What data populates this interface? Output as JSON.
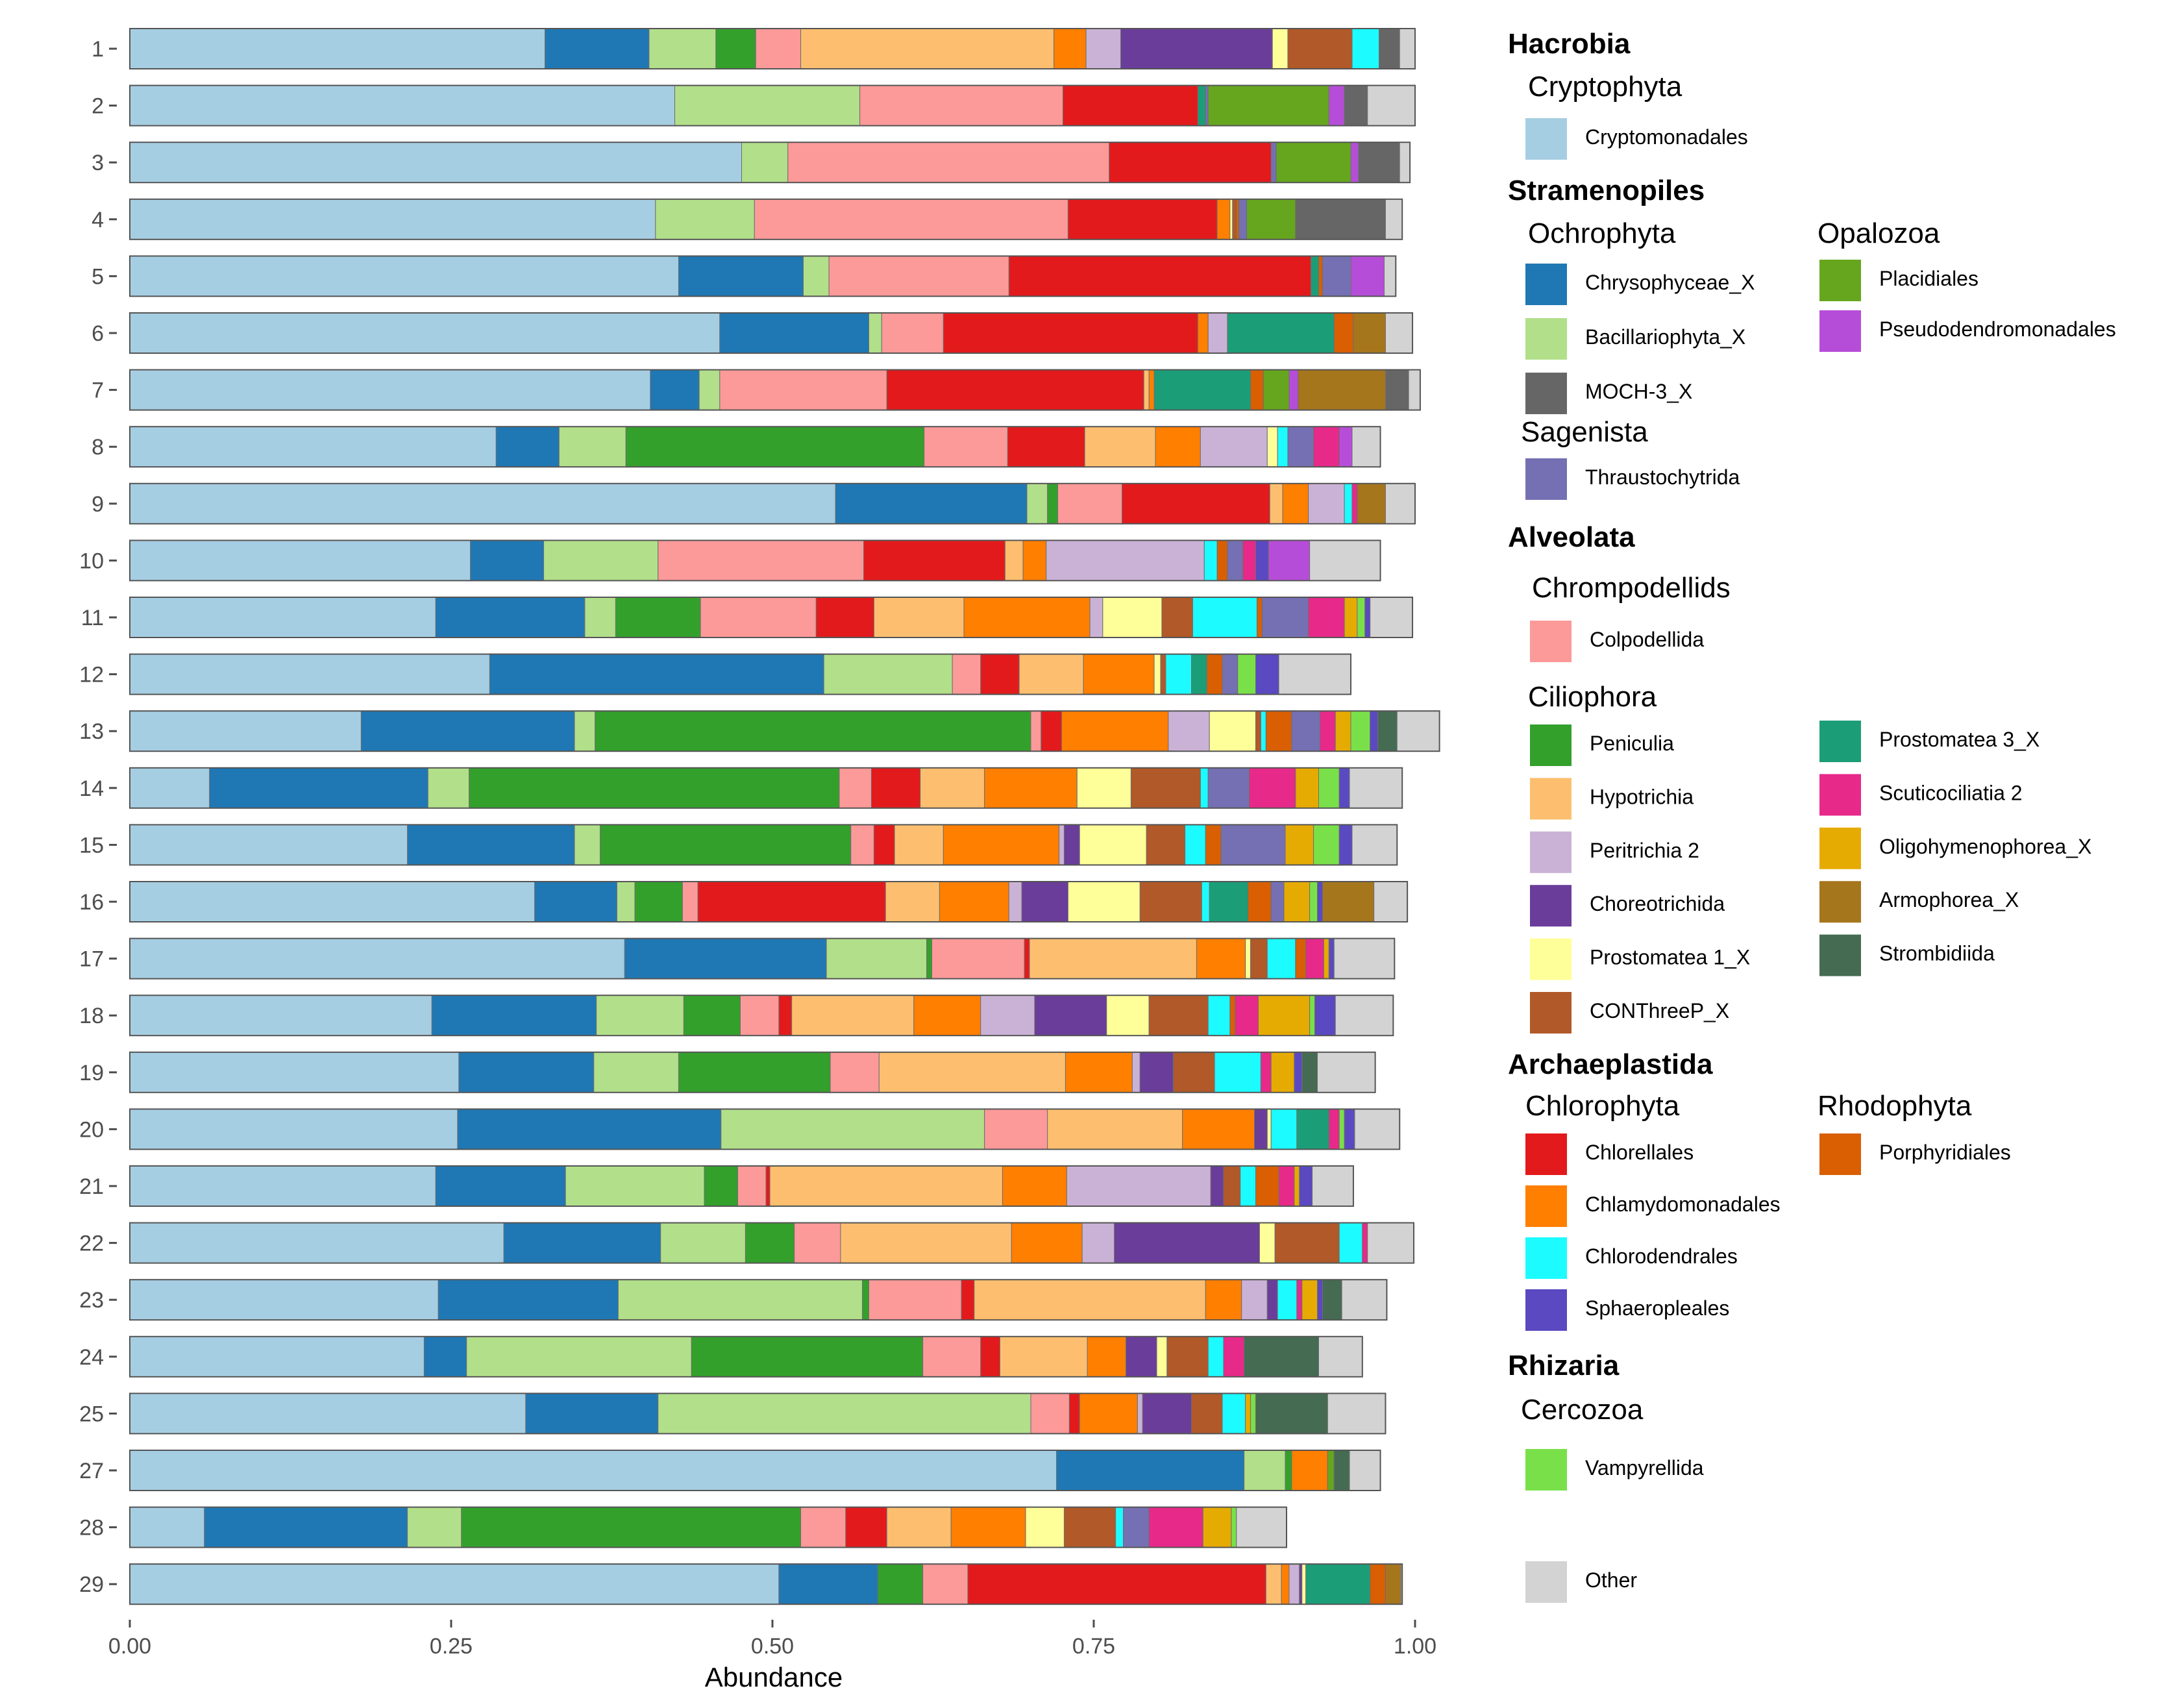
{
  "chart_data": {
    "type": "bar",
    "orientation": "horizontal",
    "stacked": true,
    "xlabel": "Abundance",
    "ylabel": "",
    "xlim": [
      0,
      1
    ],
    "xticks": [
      "0.00",
      "0.25",
      "0.50",
      "0.75",
      "1.00"
    ],
    "categories": [
      "1",
      "2",
      "3",
      "4",
      "5",
      "6",
      "7",
      "8",
      "9",
      "10",
      "11",
      "12",
      "13",
      "14",
      "15",
      "16",
      "17",
      "18",
      "19",
      "20",
      "21",
      "22",
      "23",
      "24",
      "25",
      "27",
      "28",
      "29"
    ],
    "series": [
      {
        "name": "Cryptomonadales",
        "color": "#a6cee3",
        "values": [
          0.323,
          0.424,
          0.476,
          0.409,
          0.427,
          0.459,
          0.405,
          0.285,
          0.549,
          0.265,
          0.238,
          0.28,
          0.18,
          0.062,
          0.216,
          0.315,
          0.385,
          0.235,
          0.256,
          0.255,
          0.238,
          0.291,
          0.24,
          0.229,
          0.308,
          0.721,
          0.058,
          0.505
        ]
      },
      {
        "name": "Chrysophyceae_X",
        "color": "#1f78b4",
        "values": [
          0.081,
          0,
          0,
          0,
          0.097,
          0.116,
          0.038,
          0.049,
          0.149,
          0.057,
          0.116,
          0.26,
          0.166,
          0.17,
          0.13,
          0.064,
          0.157,
          0.128,
          0.105,
          0.205,
          0.101,
          0.122,
          0.14,
          0.033,
          0.103,
          0.146,
          0.158,
          0.077
        ]
      },
      {
        "name": "Bacillariophyta_X",
        "color": "#b2df8a",
        "values": [
          0.052,
          0.144,
          0.036,
          0.077,
          0.02,
          0.01,
          0.016,
          0.052,
          0.016,
          0.089,
          0.024,
          0.1,
          0.016,
          0.032,
          0.02,
          0.014,
          0.078,
          0.068,
          0.066,
          0.205,
          0.108,
          0.066,
          0.19,
          0.175,
          0.29,
          0.032,
          0.042,
          0
        ]
      },
      {
        "name": "Peniculia",
        "color": "#33a02c",
        "values": [
          0.031,
          0,
          0,
          0,
          0,
          0,
          0,
          0.232,
          0.008,
          0,
          0.066,
          0,
          0.339,
          0.288,
          0.195,
          0.037,
          0.004,
          0.044,
          0.118,
          0,
          0.026,
          0.038,
          0.005,
          0.18,
          0,
          0.005,
          0.264,
          0.035
        ]
      },
      {
        "name": "Colpodellida",
        "color": "#fb9a99",
        "values": [
          0.035,
          0.158,
          0.25,
          0.244,
          0.14,
          0.048,
          0.13,
          0.065,
          0.05,
          0.16,
          0.09,
          0.022,
          0.008,
          0.025,
          0.018,
          0.012,
          0.072,
          0.03,
          0.038,
          0.049,
          0.022,
          0.036,
          0.072,
          0.045,
          0.03,
          0,
          0.035,
          0.035
        ]
      },
      {
        "name": "Chlorellales",
        "color": "#e31a1c",
        "values": [
          0,
          0.105,
          0.126,
          0.116,
          0.235,
          0.198,
          0.2,
          0.06,
          0.115,
          0.11,
          0.045,
          0.03,
          0.016,
          0.038,
          0.016,
          0.146,
          0.004,
          0.01,
          0,
          0,
          0.003,
          0,
          0.01,
          0.015,
          0.008,
          0,
          0.032,
          0.232
        ]
      },
      {
        "name": "Hypotrichia",
        "color": "#fdbf6f",
        "values": [
          0.197,
          0,
          0,
          0,
          0,
          0,
          0.004,
          0.055,
          0.01,
          0.014,
          0.07,
          0.05,
          0,
          0.05,
          0.038,
          0.042,
          0.13,
          0.095,
          0.145,
          0.105,
          0.181,
          0.133,
          0.18,
          0.068,
          0,
          0,
          0.05,
          0.012
        ]
      },
      {
        "name": "Chlamydomonadales",
        "color": "#ff7f00",
        "values": [
          0.025,
          0,
          0,
          0.01,
          0,
          0.008,
          0.004,
          0.035,
          0.02,
          0.018,
          0.098,
          0.055,
          0.083,
          0.072,
          0.09,
          0.054,
          0.038,
          0.052,
          0.052,
          0.056,
          0.05,
          0.055,
          0.028,
          0.03,
          0.045,
          0.028,
          0.058,
          0.006
        ]
      },
      {
        "name": "Peritrichia 2",
        "color": "#cab2d6",
        "values": [
          0.027,
          0,
          0,
          0,
          0,
          0.015,
          0,
          0.052,
          0.028,
          0.123,
          0.01,
          0,
          0.032,
          0,
          0.004,
          0.01,
          0,
          0.042,
          0.006,
          0,
          0.112,
          0.025,
          0.02,
          0,
          0.004,
          0,
          0,
          0.008
        ]
      },
      {
        "name": "Choreotrichida",
        "color": "#6a3d9a",
        "values": [
          0.118,
          0,
          0,
          0,
          0,
          0,
          0,
          0,
          0,
          0,
          0,
          0,
          0,
          0,
          0.012,
          0.036,
          0,
          0.056,
          0.026,
          0.01,
          0.01,
          0.113,
          0.008,
          0.024,
          0.038,
          0,
          0,
          0.002
        ]
      },
      {
        "name": "Prostomatea 1_X",
        "color": "#ffff99",
        "values": [
          0.012,
          0,
          0,
          0.002,
          0,
          0,
          0,
          0.008,
          0,
          0,
          0.046,
          0.005,
          0.036,
          0.042,
          0.052,
          0.056,
          0.004,
          0.033,
          0,
          0.003,
          0,
          0.012,
          0,
          0.008,
          0,
          0,
          0.03,
          0.003
        ]
      },
      {
        "name": "CONThreeP_X",
        "color": "#b15928",
        "values": [
          0.05,
          0,
          0,
          0.003,
          0,
          0,
          0,
          0,
          0,
          0,
          0.024,
          0.004,
          0.004,
          0.054,
          0.03,
          0.048,
          0.013,
          0.046,
          0.032,
          0,
          0.013,
          0.05,
          0,
          0.032,
          0.024,
          0,
          0.04,
          0
        ]
      },
      {
        "name": "Chlorodendrales",
        "color": "#1cfbff",
        "values": [
          0.021,
          0,
          0,
          0,
          0,
          0,
          0,
          0.008,
          0.006,
          0.01,
          0.05,
          0.02,
          0.004,
          0.006,
          0.016,
          0.006,
          0.022,
          0.017,
          0.036,
          0.02,
          0.012,
          0.018,
          0.015,
          0.012,
          0.018,
          0,
          0.006,
          0
        ]
      },
      {
        "name": "Prostomatea  3_X",
        "color": "#1b9e77",
        "values": [
          0,
          0.006,
          0,
          0,
          0.006,
          0.083,
          0.075,
          0,
          0,
          0,
          0,
          0.012,
          0,
          0,
          0,
          0.03,
          0,
          0,
          0,
          0.025,
          0,
          0,
          0,
          0,
          0,
          0,
          0,
          0.05
        ]
      },
      {
        "name": "Porphyridiales",
        "color": "#d95f02",
        "values": [
          0,
          0,
          0,
          0.002,
          0.003,
          0.015,
          0.01,
          0,
          0,
          0.008,
          0.004,
          0.012,
          0.02,
          0,
          0.012,
          0.018,
          0.008,
          0.004,
          0,
          0,
          0.018,
          0,
          0,
          0,
          0,
          0,
          0,
          0.012
        ]
      },
      {
        "name": "Thraustochytrida",
        "color": "#7570b3",
        "values": [
          0,
          0.002,
          0.004,
          0.006,
          0.022,
          0,
          0,
          0.02,
          0,
          0.012,
          0.036,
          0.012,
          0.022,
          0.032,
          0.05,
          0.01,
          0,
          0,
          0,
          0,
          0,
          0,
          0,
          0,
          0,
          0,
          0.02,
          0
        ]
      },
      {
        "name": "Scuticociliatia 2",
        "color": "#e7298a",
        "values": [
          0,
          0,
          0,
          0,
          0,
          0,
          0,
          0.02,
          0.004,
          0.01,
          0.028,
          0,
          0.012,
          0.036,
          0,
          0,
          0.014,
          0.018,
          0.008,
          0.008,
          0.012,
          0.004,
          0.004,
          0.016,
          0,
          0,
          0.042,
          0
        ]
      },
      {
        "name": "Oligohymenophorea_X",
        "color": "#e6ab02",
        "values": [
          0,
          0,
          0,
          0,
          0,
          0,
          0,
          0,
          0,
          0,
          0.01,
          0,
          0.012,
          0.018,
          0.022,
          0.02,
          0.004,
          0.04,
          0.018,
          0,
          0.004,
          0,
          0.012,
          0,
          0.004,
          0,
          0.022,
          0
        ]
      },
      {
        "name": "Vampyrellida",
        "color": "#7ae04a",
        "values": [
          0,
          0,
          0,
          0,
          0,
          0,
          0,
          0,
          0,
          0,
          0.006,
          0.014,
          0.015,
          0.016,
          0.02,
          0.006,
          0,
          0.004,
          0,
          0.004,
          0,
          0,
          0,
          0,
          0.004,
          0,
          0.004,
          0
        ]
      },
      {
        "name": "Sphaeropleales",
        "color": "#5a49c0",
        "values": [
          0,
          0,
          0,
          0,
          0,
          0,
          0,
          0,
          0,
          0.01,
          0.004,
          0.018,
          0.006,
          0.008,
          0.01,
          0.004,
          0.004,
          0.016,
          0.006,
          0.008,
          0.01,
          0,
          0.004,
          0,
          0,
          0,
          0,
          0
        ]
      },
      {
        "name": "Placidiales",
        "color": "#66a61e",
        "values": [
          0,
          0.094,
          0.058,
          0.038,
          0,
          0,
          0.02,
          0,
          0,
          0,
          0,
          0,
          0,
          0,
          0,
          0,
          0,
          0,
          0,
          0,
          0,
          0,
          0,
          0,
          0,
          0.005,
          0,
          0
        ]
      },
      {
        "name": "Pseudodendromonadales",
        "color": "#b64dd8",
        "values": [
          0,
          0.012,
          0.006,
          0,
          0.026,
          0,
          0.007,
          0.01,
          0,
          0.032,
          0,
          0,
          0,
          0,
          0,
          0,
          0,
          0,
          0,
          0,
          0,
          0,
          0,
          0,
          0,
          0,
          0,
          0
        ]
      },
      {
        "name": "Armophorea_X",
        "color": "#a6761d",
        "values": [
          0,
          0,
          0,
          0,
          0,
          0.025,
          0.068,
          0,
          0.022,
          0,
          0,
          0,
          0,
          0,
          0,
          0.04,
          0,
          0,
          0,
          0,
          0,
          0,
          0,
          0,
          0,
          0,
          0,
          0.012
        ]
      },
      {
        "name": "Strombidiida",
        "color": "#456b52",
        "values": [
          0,
          0,
          0,
          0,
          0,
          0,
          0,
          0,
          0,
          0,
          0,
          0,
          0.015,
          0,
          0,
          0,
          0,
          0,
          0.012,
          0,
          0,
          0,
          0.015,
          0.058,
          0.056,
          0.012,
          0,
          0
        ]
      },
      {
        "name": "MOCH-3_X",
        "color": "#666666",
        "values": [
          0.016,
          0.018,
          0.032,
          0.07,
          0,
          0,
          0.018,
          0,
          0,
          0,
          0,
          0,
          0,
          0,
          0,
          0,
          0,
          0,
          0,
          0,
          0,
          0,
          0,
          0,
          0,
          0,
          0,
          0
        ]
      },
      {
        "name": "Other",
        "color": "#d3d3d3",
        "values": [
          0.012,
          0.037,
          0.008,
          0.013,
          0.009,
          0.021,
          0.009,
          0.022,
          0.023,
          0.055,
          0.033,
          0.056,
          0.033,
          0.041,
          0.035,
          0.026,
          0.047,
          0.045,
          0.045,
          0.035,
          0.032,
          0.036,
          0.035,
          0.034,
          0.045,
          0.024,
          0.039,
          0.001
        ]
      }
    ],
    "legend": {
      "placement": "right",
      "groups": [
        {
          "title": "Hacrobia",
          "subgroups": [
            {
              "title": "Cryptophyta",
              "items": [
                "Cryptomonadales"
              ]
            }
          ]
        },
        {
          "title": "Stramenopiles",
          "subgroups": [
            {
              "title": "Ochrophyta",
              "items": [
                "Chrysophyceae_X",
                "Bacillariophyta_X",
                "MOCH-3_X"
              ]
            },
            {
              "title": "Opalozoa",
              "items": [
                "Placidiales",
                "Pseudodendromonadales"
              ]
            },
            {
              "title": "Sagenista",
              "items": [
                "Thraustochytrida"
              ]
            }
          ]
        },
        {
          "title": "Alveolata",
          "subgroups": [
            {
              "title": "Chrompodellids",
              "items": [
                "Colpodellida"
              ]
            },
            {
              "title": "Ciliophora",
              "items": [
                "Peniculia",
                "Hypotrichia",
                "Peritrichia 2",
                "Choreotrichida",
                "Prostomatea 1_X",
                "CONThreeP_X",
                "Prostomatea  3_X",
                "Scuticociliatia 2",
                "Oligohymenophorea_X",
                "Armophorea_X",
                "Strombidiida"
              ]
            }
          ]
        },
        {
          "title": "Archaeplastida",
          "subgroups": [
            {
              "title": "Chlorophyta",
              "items": [
                "Chlorellales",
                "Chlamydomonadales",
                "Chlorodendrales",
                "Sphaeropleales"
              ]
            },
            {
              "title": "Rhodophyta",
              "items": [
                "Porphyridiales"
              ]
            }
          ]
        },
        {
          "title": "Rhizaria",
          "subgroups": [
            {
              "title": "Cercozoa",
              "items": [
                "Vampyrellida"
              ]
            }
          ]
        },
        {
          "title": "",
          "subgroups": [
            {
              "title": "",
              "items": [
                "Other"
              ]
            }
          ]
        }
      ]
    }
  }
}
